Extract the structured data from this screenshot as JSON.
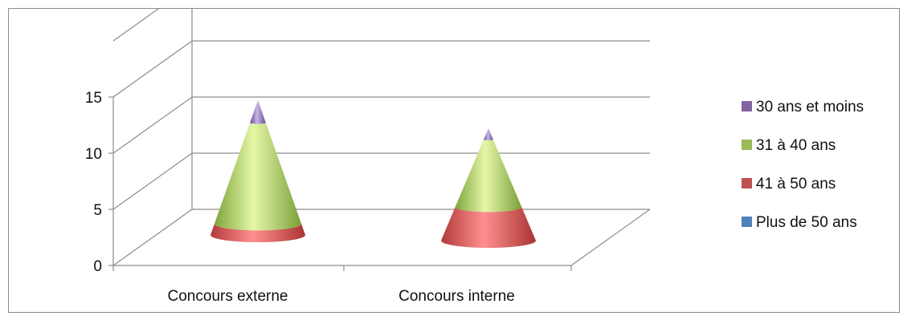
{
  "chart_data": {
    "type": "bar",
    "style": "3d-cone-stacked",
    "categories": [
      "Concours externe",
      "Concours interne"
    ],
    "series": [
      {
        "name": "Plus de 50 ans",
        "color": "#4f81bd",
        "values": [
          0,
          0
        ]
      },
      {
        "name": "41 à 50 ans",
        "color": "#c0504d",
        "values": [
          1,
          3
        ]
      },
      {
        "name": "31 à 40 ans",
        "color": "#9bbb59",
        "values": [
          9,
          6
        ]
      },
      {
        "name": "30 ans et moins",
        "color": "#8064a2",
        "values": [
          2,
          1
        ]
      }
    ],
    "yticks": [
      "0",
      "5",
      "10",
      "15"
    ],
    "ylim": [
      0,
      20
    ],
    "grid": true,
    "legend_position": "right"
  }
}
